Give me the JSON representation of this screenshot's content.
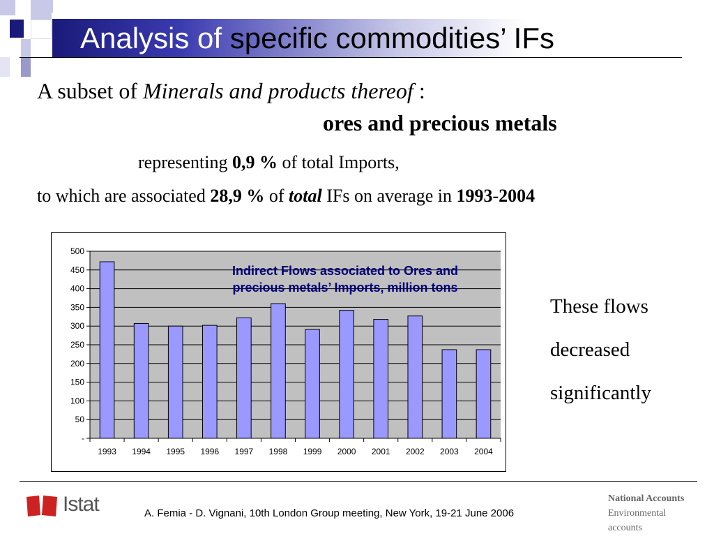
{
  "slide": {
    "title_part1": "Analysis of",
    "title_part2": "specific commodities’ IFs"
  },
  "text": {
    "line1_a": "A subset of ",
    "line1_b": "Minerals and products thereof",
    "line1_c": " :",
    "line2": "ores and precious metals",
    "line3_a": "representing  ",
    "line3_b": "0,9 %",
    "line3_c": " of  total Imports,",
    "line4_a": "to which are associated ",
    "line4_b": "28,9 %",
    "line4_c": " of  ",
    "line4_d": "total",
    "line4_e": "  IFs on average in ",
    "line4_f": "1993-2004"
  },
  "side_note": [
    "These flows",
    "decreased",
    "significantly"
  ],
  "footer": {
    "citation": "A. Femia - D. Vignani, 10th London Group meeting, New York, 19-21 June 2006",
    "logo": "Istat",
    "na_line1": "National Accounts",
    "na_line2": "Environmental",
    "na_line3": "accounts"
  },
  "colors": {
    "bar": "#9999ff",
    "plot_bg": "#c0c0c0",
    "title_band": "#1a1a7a",
    "logo_red": "#cc2222"
  },
  "chart_data": {
    "type": "bar",
    "title_lines": [
      "Indirect Flows associated to Ores and",
      "precious metals’ Imports, million tons"
    ],
    "categories": [
      "1993",
      "1994",
      "1995",
      "1996",
      "1997",
      "1998",
      "1999",
      "2000",
      "2001",
      "2002",
      "2003",
      "2004"
    ],
    "values": [
      472,
      307,
      300,
      302,
      322,
      360,
      291,
      342,
      318,
      327,
      237,
      237
    ],
    "ylim": [
      0,
      500
    ],
    "yticks": [
      0,
      50,
      100,
      150,
      200,
      250,
      300,
      350,
      400,
      450,
      500
    ],
    "ytick_labels": [
      "-",
      "50",
      "100",
      "150",
      "200",
      "250",
      "300",
      "350",
      "400",
      "450",
      "500"
    ],
    "grid": true,
    "legend": "none"
  }
}
